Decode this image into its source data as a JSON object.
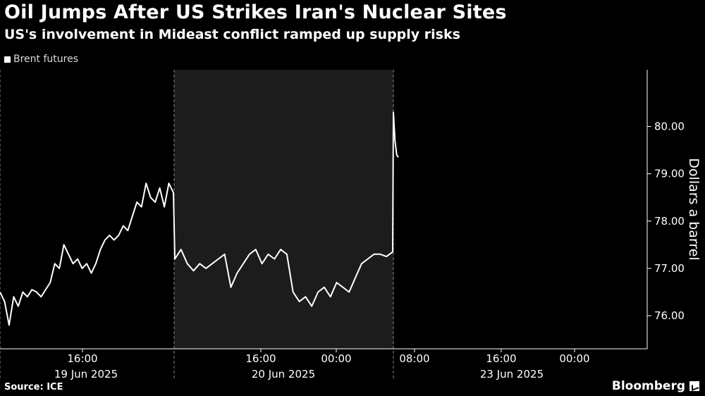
{
  "chart_data": {
    "type": "line",
    "title": "Oil Jumps After US Strikes Iran's Nuclear Sites",
    "subtitle": "US's involvement in Mideast conflict ramped up supply risks",
    "ylabel": "Dollars a barrel",
    "y_ticks": [
      76.0,
      77.0,
      78.0,
      79.0,
      80.0
    ],
    "y_tick_labels": [
      "76.00",
      "77.00",
      "78.00",
      "79.00",
      "80.00"
    ],
    "ylim": [
      75.3,
      81.2
    ],
    "y_axis_side": "right",
    "x_tick_labels": [
      "16:00",
      "16:00",
      "00:00",
      "08:00",
      "16:00",
      "00:00"
    ],
    "x_date_labels": [
      "19 Jun 2025",
      "20 Jun 2025",
      "23 Jun 2025"
    ],
    "shaded_session": "20 Jun 2025",
    "legend_position": "top-left",
    "grid": false,
    "series": [
      {
        "name": "Brent futures",
        "color": "#ffffff",
        "values": [
          76.5,
          76.3,
          75.8,
          76.4,
          76.2,
          76.5,
          76.4,
          76.55,
          76.5,
          76.4,
          76.55,
          76.7,
          77.1,
          77.0,
          77.5,
          77.3,
          77.1,
          77.2,
          77.0,
          77.1,
          76.9,
          77.1,
          77.4,
          77.6,
          77.7,
          77.6,
          77.7,
          77.9,
          77.8,
          78.1,
          78.4,
          78.3,
          78.8,
          78.5,
          78.4,
          78.7,
          78.3,
          78.8,
          78.6,
          77.2,
          77.4,
          77.1,
          76.95,
          77.1,
          77.0,
          77.1,
          77.2,
          77.3,
          76.6,
          76.9,
          77.1,
          77.3,
          77.4,
          77.1,
          77.3,
          77.2,
          77.4,
          77.3,
          76.5,
          76.3,
          76.4,
          76.2,
          76.5,
          76.6,
          76.4,
          76.7,
          76.6,
          76.5,
          76.8,
          77.1,
          77.2,
          77.3,
          77.3,
          77.25,
          77.35,
          80.3,
          79.7,
          79.4,
          79.35
        ]
      }
    ]
  },
  "footer": {
    "source": "Source: ICE",
    "brand": "Bloomberg"
  }
}
